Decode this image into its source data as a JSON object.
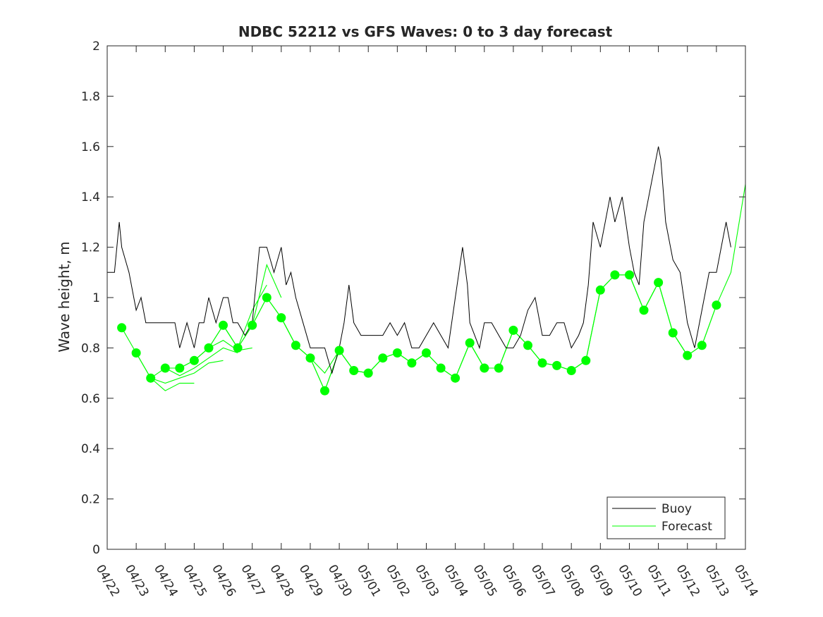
{
  "chart_data": {
    "type": "line",
    "title": "NDBC 52212 vs GFS Waves: 0 to 3 day forecast",
    "xlabel": "",
    "ylabel": "Wave height, m",
    "ylim": [
      0,
      2
    ],
    "yticks": [
      "0",
      "0.2",
      "0.4",
      "0.6",
      "0.8",
      "1",
      "1.2",
      "1.4",
      "1.6",
      "1.8",
      "2"
    ],
    "xlim": [
      "04/22",
      "05/14"
    ],
    "xticks": [
      "04/22",
      "04/23",
      "04/24",
      "04/25",
      "04/26",
      "04/27",
      "04/28",
      "04/29",
      "04/30",
      "05/01",
      "05/02",
      "05/03",
      "05/04",
      "05/05",
      "05/06",
      "05/07",
      "05/08",
      "05/09",
      "05/10",
      "05/11",
      "05/12",
      "05/13",
      "05/14"
    ],
    "grid": false,
    "legend": {
      "position": "bottom-right",
      "entries": [
        "Buoy",
        "Forecast"
      ]
    },
    "colors": {
      "buoy": "#000000",
      "forecast": "#00ff00",
      "axes": "#262626"
    },
    "series": [
      {
        "name": "Buoy",
        "x": [
          "04/22",
          "04/22 06:00",
          "04/22 08:00",
          "04/22 10:00",
          "04/22 12:00",
          "04/22 18:00",
          "04/23",
          "04/23 04:00",
          "04/23 08:00",
          "04/24",
          "04/24 04:00",
          "04/24 08:00",
          "04/24 12:00",
          "04/24 18:00",
          "04/25",
          "04/25 02:00",
          "04/25 04:00",
          "04/25 06:00",
          "04/25 08:00",
          "04/25 12:00",
          "04/25 18:00",
          "04/26",
          "04/26 04:00",
          "04/26 08:00",
          "04/26 12:00",
          "04/26 18:00",
          "04/27",
          "04/27 06:00",
          "04/27 12:00",
          "04/27 18:00",
          "04/28",
          "04/28 04:00",
          "04/28 08:00",
          "04/28 12:00",
          "04/28 18:00",
          "04/29",
          "04/29 06:00",
          "04/29 12:00",
          "04/29 18:00",
          "04/30",
          "04/30 04:00",
          "04/30 08:00",
          "04/30 12:00",
          "04/30 18:00",
          "05/01",
          "05/01 06:00",
          "05/01 12:00",
          "05/01 18:00",
          "05/02",
          "05/02 06:00",
          "05/02 12:00",
          "05/02 18:00",
          "05/03",
          "05/03 06:00",
          "05/03 12:00",
          "05/03 18:00",
          "05/04",
          "05/04 06:00",
          "05/04 10:00",
          "05/04 12:00",
          "05/04 16:00",
          "05/04 20:00",
          "05/05",
          "05/05 06:00",
          "05/05 12:00",
          "05/05 18:00",
          "05/06",
          "05/06 06:00",
          "05/06 12:00",
          "05/06 18:00",
          "05/07",
          "05/07 06:00",
          "05/07 12:00",
          "05/07 18:00",
          "05/08",
          "05/08 06:00",
          "05/08 10:00",
          "05/08 14:00",
          "05/08 18:00",
          "05/09",
          "05/09 04:00",
          "05/09 08:00",
          "05/09 12:00",
          "05/09 18:00",
          "05/10",
          "05/10 04:00",
          "05/10 08:00",
          "05/10 12:00",
          "05/10 18:00",
          "05/11",
          "05/11 02:00",
          "05/11 06:00",
          "05/11 12:00",
          "05/11 18:00",
          "05/12",
          "05/12 06:00",
          "05/12 12:00",
          "05/12 18:00",
          "05/13",
          "05/13 04:00",
          "05/13 08:00",
          "05/13 12:00"
        ],
        "y": [
          1.1,
          1.1,
          1.2,
          1.3,
          1.2,
          1.1,
          0.95,
          1.0,
          0.9,
          0.9,
          0.9,
          0.9,
          0.8,
          0.9,
          0.8,
          0.85,
          0.9,
          0.9,
          0.9,
          1.0,
          0.9,
          1.0,
          1.0,
          0.9,
          0.9,
          0.85,
          0.9,
          1.2,
          1.2,
          1.1,
          1.2,
          1.05,
          1.1,
          1.0,
          0.9,
          0.8,
          0.8,
          0.8,
          0.7,
          0.8,
          0.9,
          1.05,
          0.9,
          0.85,
          0.85,
          0.85,
          0.85,
          0.9,
          0.85,
          0.9,
          0.8,
          0.8,
          0.85,
          0.9,
          0.85,
          0.8,
          1.0,
          1.2,
          1.05,
          0.9,
          0.85,
          0.8,
          0.9,
          0.9,
          0.85,
          0.8,
          0.8,
          0.85,
          0.95,
          1.0,
          0.85,
          0.85,
          0.9,
          0.9,
          0.8,
          0.85,
          0.9,
          1.05,
          1.3,
          1.2,
          1.3,
          1.4,
          1.3,
          1.4,
          1.2,
          1.1,
          1.05,
          1.3,
          1.45,
          1.6,
          1.55,
          1.3,
          1.15,
          1.1,
          0.9,
          0.8,
          0.95,
          1.1,
          1.1,
          1.2,
          1.3,
          1.2
        ]
      },
      {
        "name": "Forecast",
        "runs": [
          {
            "x": [
              "04/22 12:00",
              "04/23",
              "04/23 12:00",
              "04/24",
              "04/24 12:00",
              "04/25"
            ],
            "y": [
              0.88,
              0.78,
              0.68,
              0.63,
              0.66,
              0.66
            ]
          },
          {
            "x": [
              "04/23",
              "04/23 12:00",
              "04/24",
              "04/24 12:00",
              "04/25",
              "04/25 12:00",
              "04/26"
            ],
            "y": [
              0.78,
              0.68,
              0.66,
              0.68,
              0.7,
              0.74,
              0.75
            ]
          },
          {
            "x": [
              "04/23 12:00",
              "04/24",
              "04/24 12:00",
              "04/25",
              "04/25 12:00",
              "04/26",
              "04/26 12:00"
            ],
            "y": [
              0.68,
              0.72,
              0.69,
              0.72,
              0.76,
              0.8,
              0.78
            ]
          },
          {
            "x": [
              "04/24",
              "04/24 12:00",
              "04/25",
              "04/25 12:00",
              "04/26",
              "04/26 12:00",
              "04/27"
            ],
            "y": [
              0.72,
              0.72,
              0.75,
              0.8,
              0.83,
              0.79,
              0.8
            ]
          },
          {
            "x": [
              "04/24 12:00",
              "04/25",
              "04/25 12:00",
              "04/26",
              "04/26 12:00",
              "04/27",
              "04/27 12:00"
            ],
            "y": [
              0.72,
              0.75,
              0.8,
              0.89,
              0.8,
              0.95,
              1.05
            ]
          },
          {
            "x": [
              "04/25",
              "04/25 12:00",
              "04/26",
              "04/26 12:00",
              "04/27",
              "04/27 12:00",
              "04/28"
            ],
            "y": [
              0.75,
              0.8,
              0.89,
              0.8,
              0.89,
              1.13,
              1.0
            ]
          },
          {
            "x": [
              "04/26",
              "04/26 12:00",
              "04/27",
              "04/27 12:00",
              "04/28",
              "04/28 12:00",
              "04/29"
            ],
            "y": [
              0.89,
              0.8,
              0.89,
              1.0,
              0.92,
              0.81,
              0.76
            ]
          },
          {
            "x": [
              "04/27",
              "04/27 12:00",
              "04/28",
              "04/28 12:00",
              "04/29",
              "04/29 12:00",
              "04/30"
            ],
            "y": [
              0.89,
              1.0,
              0.92,
              0.81,
              0.76,
              0.63,
              0.79
            ]
          },
          {
            "x": [
              "04/28",
              "04/28 12:00",
              "04/29",
              "04/29 12:00",
              "04/30",
              "04/30 12:00",
              "05/01"
            ],
            "y": [
              0.92,
              0.81,
              0.76,
              0.63,
              0.79,
              0.71,
              0.7
            ]
          },
          {
            "x": [
              "04/29",
              "04/29 12:00",
              "04/30",
              "04/30 12:00",
              "05/01",
              "05/01 12:00",
              "05/02"
            ],
            "y": [
              0.76,
              0.7,
              0.79,
              0.71,
              0.7,
              0.76,
              0.78
            ]
          },
          {
            "x": [
              "04/30",
              "04/30 12:00",
              "05/01",
              "05/01 12:00",
              "05/02",
              "05/02 12:00",
              "05/03"
            ],
            "y": [
              0.79,
              0.71,
              0.7,
              0.76,
              0.78,
              0.74,
              0.78
            ]
          },
          {
            "x": [
              "05/01",
              "05/01 12:00",
              "05/02",
              "05/02 12:00",
              "05/03",
              "05/03 12:00",
              "05/04"
            ],
            "y": [
              0.7,
              0.76,
              0.78,
              0.74,
              0.78,
              0.72,
              0.68
            ]
          },
          {
            "x": [
              "05/02",
              "05/02 12:00",
              "05/03",
              "05/03 12:00",
              "05/04",
              "05/04 12:00",
              "05/05"
            ],
            "y": [
              0.78,
              0.74,
              0.78,
              0.72,
              0.68,
              0.82,
              0.72
            ]
          },
          {
            "x": [
              "05/03",
              "05/03 12:00",
              "05/04",
              "05/04 12:00",
              "05/05",
              "05/05 12:00",
              "05/06"
            ],
            "y": [
              0.78,
              0.72,
              0.68,
              0.82,
              0.72,
              0.72,
              0.87
            ]
          },
          {
            "x": [
              "05/04",
              "05/04 12:00",
              "05/05",
              "05/05 12:00",
              "05/06",
              "05/06 12:00",
              "05/07"
            ],
            "y": [
              0.68,
              0.82,
              0.72,
              0.72,
              0.87,
              0.81,
              0.74
            ]
          },
          {
            "x": [
              "05/05",
              "05/05 12:00",
              "05/06",
              "05/06 12:00",
              "05/07",
              "05/07 12:00",
              "05/08"
            ],
            "y": [
              0.72,
              0.72,
              0.87,
              0.81,
              0.74,
              0.73,
              0.71
            ]
          },
          {
            "x": [
              "05/06",
              "05/06 12:00",
              "05/07",
              "05/07 12:00",
              "05/08",
              "05/08 12:00",
              "05/09"
            ],
            "y": [
              0.87,
              0.81,
              0.74,
              0.73,
              0.71,
              0.75,
              1.03
            ]
          },
          {
            "x": [
              "05/07",
              "05/07 12:00",
              "05/08",
              "05/08 12:00",
              "05/09",
              "05/09 12:00",
              "05/10"
            ],
            "y": [
              0.74,
              0.73,
              0.71,
              0.75,
              1.03,
              1.09,
              1.09
            ]
          },
          {
            "x": [
              "05/08",
              "05/08 12:00",
              "05/09",
              "05/09 12:00",
              "05/10",
              "05/10 12:00",
              "05/11"
            ],
            "y": [
              0.71,
              0.75,
              1.03,
              1.09,
              1.09,
              0.95,
              1.06
            ]
          },
          {
            "x": [
              "05/09",
              "05/09 12:00",
              "05/10",
              "05/10 12:00",
              "05/11",
              "05/11 12:00",
              "05/12"
            ],
            "y": [
              1.03,
              1.09,
              1.09,
              0.95,
              1.06,
              0.86,
              0.77
            ]
          },
          {
            "x": [
              "05/10",
              "05/10 12:00",
              "05/11",
              "05/11 12:00",
              "05/12",
              "05/12 12:00",
              "05/13"
            ],
            "y": [
              1.09,
              0.95,
              1.06,
              0.86,
              0.77,
              0.81,
              0.97
            ]
          },
          {
            "x": [
              "05/11",
              "05/11 12:00",
              "05/12",
              "05/12 12:00",
              "05/13",
              "05/13 12:00",
              "05/14"
            ],
            "y": [
              1.06,
              0.86,
              0.77,
              0.81,
              0.97,
              1.1,
              1.45
            ]
          }
        ],
        "analysis_points": {
          "x": [
            "04/22 12:00",
            "04/23",
            "04/23 12:00",
            "04/24",
            "04/24 12:00",
            "04/25",
            "04/25 12:00",
            "04/26",
            "04/26 12:00",
            "04/27",
            "04/27 12:00",
            "04/28",
            "04/28 12:00",
            "04/29",
            "04/29 12:00",
            "04/30",
            "04/30 12:00",
            "05/01",
            "05/01 12:00",
            "05/02",
            "05/02 12:00",
            "05/03",
            "05/03 12:00",
            "05/04",
            "05/04 12:00",
            "05/05",
            "05/05 12:00",
            "05/06",
            "05/06 12:00",
            "05/07",
            "05/07 12:00",
            "05/08",
            "05/08 12:00",
            "05/09",
            "05/09 12:00",
            "05/10",
            "05/10 12:00",
            "05/11",
            "05/11 12:00",
            "05/12",
            "05/12 12:00",
            "05/13"
          ],
          "y": [
            0.88,
            0.78,
            0.68,
            0.72,
            0.72,
            0.75,
            0.8,
            0.89,
            0.8,
            0.89,
            1.0,
            0.92,
            0.81,
            0.76,
            0.63,
            0.79,
            0.71,
            0.7,
            0.76,
            0.78,
            0.74,
            0.78,
            0.72,
            0.68,
            0.82,
            0.72,
            0.72,
            0.87,
            0.81,
            0.74,
            0.73,
            0.71,
            0.75,
            1.03,
            1.09,
            1.09,
            0.95,
            1.06,
            0.86,
            0.77,
            0.81,
            0.97
          ]
        }
      }
    ]
  }
}
